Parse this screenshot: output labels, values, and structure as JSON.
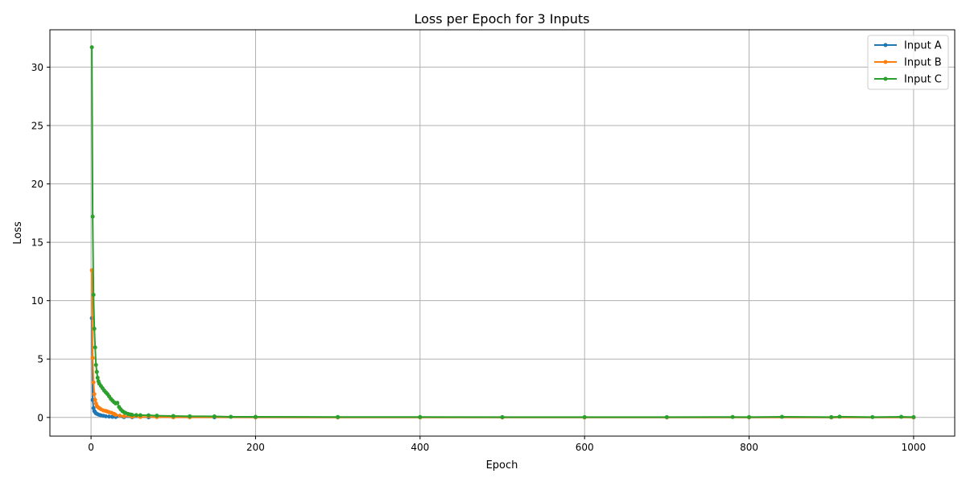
{
  "chart_data": {
    "type": "line",
    "title": "Loss per Epoch for 3 Inputs",
    "xlabel": "Epoch",
    "ylabel": "Loss",
    "xlim": [
      -50,
      1050
    ],
    "ylim": [
      -1.6,
      33.2
    ],
    "x_ticks": [
      0,
      200,
      400,
      600,
      800,
      1000
    ],
    "y_ticks": [
      0,
      5,
      10,
      15,
      20,
      25,
      30
    ],
    "grid": true,
    "legend_position": "top-right",
    "series": [
      {
        "name": "Input A",
        "color": "#1f77b4",
        "points": [
          [
            1,
            8.5
          ],
          [
            2,
            1.5
          ],
          [
            3,
            0.8
          ],
          [
            4,
            0.55
          ],
          [
            5,
            0.45
          ],
          [
            6,
            0.35
          ],
          [
            8,
            0.28
          ],
          [
            10,
            0.22
          ],
          [
            12,
            0.18
          ],
          [
            15,
            0.14
          ],
          [
            18,
            0.1
          ],
          [
            22,
            0.07
          ],
          [
            26,
            0.05
          ],
          [
            30,
            0.04
          ],
          [
            40,
            0.03
          ],
          [
            50,
            0.02
          ],
          [
            70,
            0.015
          ],
          [
            100,
            0.01
          ],
          [
            150,
            0.008
          ],
          [
            200,
            0.005
          ],
          [
            300,
            0.004
          ],
          [
            400,
            0.003
          ],
          [
            500,
            0.002
          ],
          [
            600,
            0.002
          ],
          [
            700,
            0.002
          ],
          [
            800,
            0.002
          ],
          [
            900,
            0.002
          ],
          [
            1000,
            0.002
          ]
        ]
      },
      {
        "name": "Input B",
        "color": "#ff7f0e",
        "points": [
          [
            1,
            12.6
          ],
          [
            2,
            5.1
          ],
          [
            3,
            3.0
          ],
          [
            4,
            2.0
          ],
          [
            5,
            1.5
          ],
          [
            6,
            1.2
          ],
          [
            7,
            1.0
          ],
          [
            8,
            0.9
          ],
          [
            10,
            0.8
          ],
          [
            12,
            0.7
          ],
          [
            15,
            0.6
          ],
          [
            18,
            0.55
          ],
          [
            20,
            0.5
          ],
          [
            22,
            0.45
          ],
          [
            25,
            0.4
          ],
          [
            28,
            0.3
          ],
          [
            30,
            0.22
          ],
          [
            35,
            0.15
          ],
          [
            40,
            0.1
          ],
          [
            50,
            0.06
          ],
          [
            60,
            0.04
          ],
          [
            80,
            0.03
          ],
          [
            100,
            0.02
          ],
          [
            120,
            0.01
          ],
          [
            200,
            0.008
          ],
          [
            300,
            0.005
          ],
          [
            400,
            0.004
          ],
          [
            500,
            0.003
          ],
          [
            600,
            0.003
          ],
          [
            700,
            0.003
          ],
          [
            800,
            0.003
          ],
          [
            900,
            0.003
          ],
          [
            1000,
            0.003
          ]
        ]
      },
      {
        "name": "Input C",
        "color": "#2ca02c",
        "points": [
          [
            1,
            31.7
          ],
          [
            2,
            17.2
          ],
          [
            3,
            10.5
          ],
          [
            4,
            7.6
          ],
          [
            5,
            6.0
          ],
          [
            6,
            4.5
          ],
          [
            7,
            3.9
          ],
          [
            8,
            3.4
          ],
          [
            9,
            3.1
          ],
          [
            10,
            2.9
          ],
          [
            12,
            2.7
          ],
          [
            14,
            2.5
          ],
          [
            16,
            2.3
          ],
          [
            18,
            2.15
          ],
          [
            20,
            2.0
          ],
          [
            22,
            1.8
          ],
          [
            24,
            1.6
          ],
          [
            26,
            1.45
          ],
          [
            28,
            1.3
          ],
          [
            30,
            1.2
          ],
          [
            32,
            1.25
          ],
          [
            34,
            0.9
          ],
          [
            36,
            0.7
          ],
          [
            38,
            0.55
          ],
          [
            40,
            0.45
          ],
          [
            42,
            0.38
          ],
          [
            45,
            0.3
          ],
          [
            48,
            0.25
          ],
          [
            50,
            0.22
          ],
          [
            55,
            0.2
          ],
          [
            60,
            0.19
          ],
          [
            70,
            0.18
          ],
          [
            80,
            0.15
          ],
          [
            100,
            0.12
          ],
          [
            120,
            0.1
          ],
          [
            150,
            0.09
          ],
          [
            170,
            0.05
          ],
          [
            200,
            0.05
          ],
          [
            300,
            0.04
          ],
          [
            400,
            0.035
          ],
          [
            500,
            0.03
          ],
          [
            600,
            0.03
          ],
          [
            700,
            0.03
          ],
          [
            780,
            0.04
          ],
          [
            800,
            0.03
          ],
          [
            840,
            0.05
          ],
          [
            900,
            0.03
          ],
          [
            910,
            0.06
          ],
          [
            950,
            0.03
          ],
          [
            985,
            0.05
          ],
          [
            1000,
            0.03
          ]
        ]
      }
    ]
  }
}
